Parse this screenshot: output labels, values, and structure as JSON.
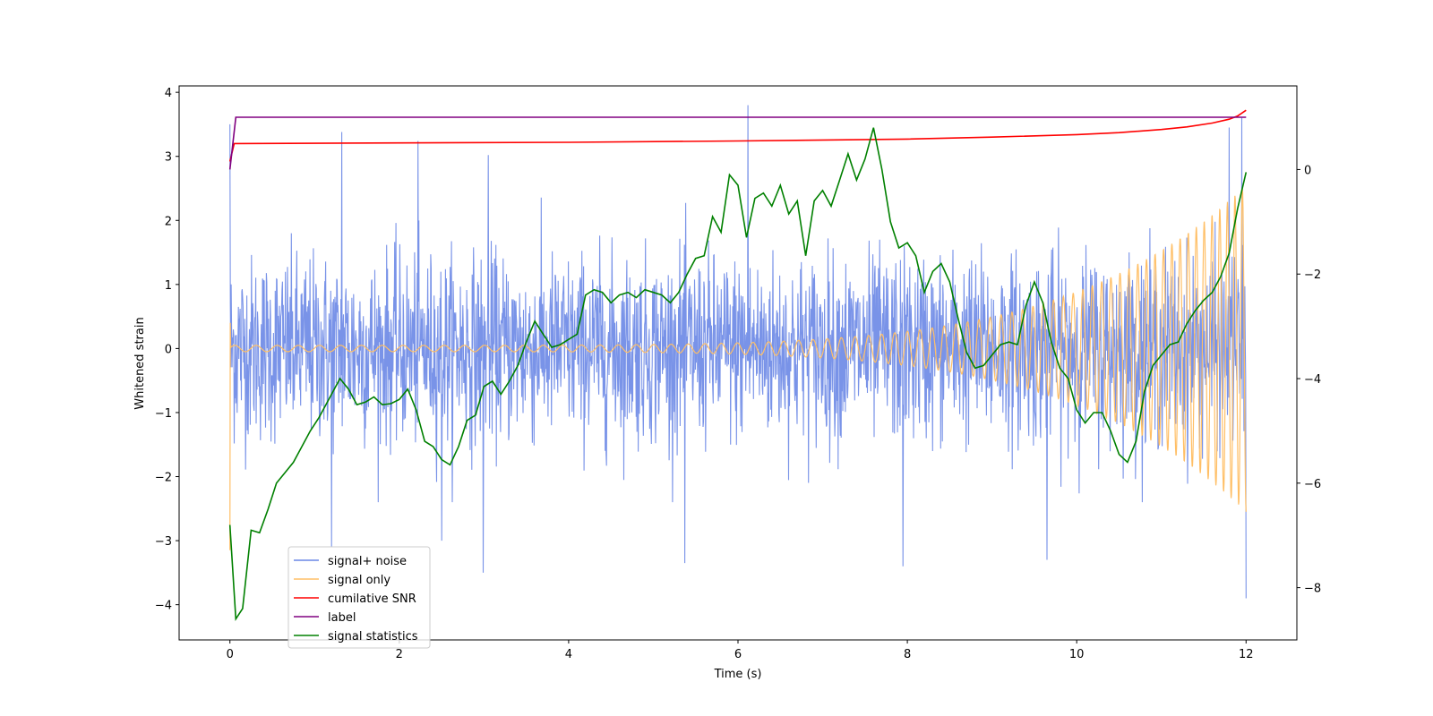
{
  "chart_data": {
    "type": "line",
    "title": "",
    "xlabel": "Time (s)",
    "ylabel": "Whitened strain",
    "xlim": [
      -0.6,
      12.6
    ],
    "ylim": [
      -4.55,
      4.1
    ],
    "ylim_right": [
      -9.0,
      1.6
    ],
    "xticks": [
      0,
      2,
      4,
      6,
      8,
      10,
      12
    ],
    "yticks": [
      -4,
      -3,
      -2,
      -1,
      0,
      1,
      2,
      3,
      4
    ],
    "yticks_right": [
      -8,
      -6,
      -4,
      -2,
      0
    ],
    "grid": false,
    "legend_position": "lower left",
    "series": [
      {
        "name": "signal+ noise",
        "color": "#6a87e6",
        "axis": "left",
        "kind": "noise band",
        "x_range": [
          0,
          12
        ],
        "typical_range": [
          -1.7,
          1.7
        ],
        "spikes": [
          {
            "x": 0.0,
            "y": 3.5
          },
          {
            "x": 1.32,
            "y": 3.38
          },
          {
            "x": 2.22,
            "y": 3.24
          },
          {
            "x": 3.05,
            "y": 3.02
          },
          {
            "x": 6.12,
            "y": 3.8
          },
          {
            "x": 11.8,
            "y": 3.45
          },
          {
            "x": 11.95,
            "y": 3.6
          },
          {
            "x": 1.2,
            "y": -3.1
          },
          {
            "x": 2.5,
            "y": -3.0
          },
          {
            "x": 2.99,
            "y": -3.5
          },
          {
            "x": 5.37,
            "y": -3.35
          },
          {
            "x": 7.95,
            "y": -3.4
          },
          {
            "x": 9.65,
            "y": -3.3
          },
          {
            "x": 12.0,
            "y": -3.9
          }
        ]
      },
      {
        "name": "signal only",
        "color": "#ffbf66",
        "axis": "left",
        "kind": "chirp",
        "start_amplitude": 0.05,
        "end_amplitude": 2.55,
        "start_y": -3.15
      },
      {
        "name": "cumilative SNR",
        "color": "#ff0000",
        "axis": "left",
        "x": [
          0,
          0.05,
          2,
          4,
          6,
          8,
          9,
          10,
          10.5,
          11,
          11.3,
          11.6,
          11.8,
          11.9,
          12.0
        ],
        "y": [
          2.92,
          3.2,
          3.21,
          3.22,
          3.24,
          3.27,
          3.3,
          3.34,
          3.37,
          3.42,
          3.46,
          3.52,
          3.58,
          3.63,
          3.72
        ]
      },
      {
        "name": "label",
        "color": "#800080",
        "axis": "right",
        "x": [
          0,
          0.07,
          11.96,
          12.0
        ],
        "y": [
          0,
          1,
          1,
          1
        ]
      },
      {
        "name": "signal statistics",
        "color": "#008000",
        "axis": "right",
        "x": [
          0,
          0.07,
          0.15,
          0.25,
          0.35,
          0.45,
          0.55,
          0.65,
          0.75,
          0.85,
          0.95,
          1.05,
          1.15,
          1.3,
          1.4,
          1.5,
          1.6,
          1.7,
          1.8,
          1.9,
          2.0,
          2.1,
          2.2,
          2.3,
          2.4,
          2.5,
          2.6,
          2.7,
          2.8,
          2.9,
          3.0,
          3.1,
          3.2,
          3.3,
          3.4,
          3.5,
          3.6,
          3.7,
          3.8,
          3.9,
          4.0,
          4.1,
          4.2,
          4.3,
          4.4,
          4.5,
          4.6,
          4.7,
          4.8,
          4.9,
          5.0,
          5.1,
          5.2,
          5.3,
          5.4,
          5.5,
          5.6,
          5.7,
          5.8,
          5.9,
          6.0,
          6.1,
          6.2,
          6.3,
          6.4,
          6.5,
          6.6,
          6.7,
          6.8,
          6.9,
          7.0,
          7.1,
          7.2,
          7.3,
          7.4,
          7.5,
          7.6,
          7.7,
          7.8,
          7.9,
          8.0,
          8.1,
          8.2,
          8.3,
          8.4,
          8.5,
          8.6,
          8.7,
          8.8,
          8.9,
          9.0,
          9.1,
          9.2,
          9.3,
          9.4,
          9.5,
          9.6,
          9.7,
          9.8,
          9.9,
          10.0,
          10.1,
          10.2,
          10.3,
          10.4,
          10.5,
          10.6,
          10.7,
          10.8,
          10.9,
          11.0,
          11.1,
          11.2,
          11.3,
          11.4,
          11.5,
          11.6,
          11.7,
          11.8,
          11.9,
          12.0
        ],
        "y": [
          -6.8,
          -8.6,
          -8.4,
          -6.9,
          -6.95,
          -6.5,
          -6.0,
          -5.8,
          -5.6,
          -5.3,
          -5.0,
          -4.75,
          -4.45,
          -4.0,
          -4.2,
          -4.5,
          -4.45,
          -4.35,
          -4.5,
          -4.48,
          -4.4,
          -4.2,
          -4.6,
          -5.2,
          -5.3,
          -5.55,
          -5.65,
          -5.3,
          -4.8,
          -4.7,
          -4.15,
          -4.05,
          -4.3,
          -4.05,
          -3.75,
          -3.3,
          -2.9,
          -3.15,
          -3.4,
          -3.35,
          -3.25,
          -3.15,
          -2.4,
          -2.3,
          -2.35,
          -2.55,
          -2.4,
          -2.35,
          -2.45,
          -2.3,
          -2.35,
          -2.4,
          -2.55,
          -2.35,
          -2.0,
          -1.7,
          -1.65,
          -0.9,
          -1.2,
          -0.1,
          -0.3,
          -1.3,
          -0.55,
          -0.45,
          -0.7,
          -0.3,
          -0.85,
          -0.6,
          -1.65,
          -0.6,
          -0.4,
          -0.7,
          -0.2,
          0.3,
          -0.2,
          0.2,
          0.8,
          0.0,
          -1.0,
          -1.5,
          -1.4,
          -1.65,
          -2.35,
          -1.95,
          -1.8,
          -2.15,
          -2.85,
          -3.5,
          -3.8,
          -3.75,
          -3.55,
          -3.35,
          -3.3,
          -3.35,
          -2.6,
          -2.15,
          -2.55,
          -3.3,
          -3.8,
          -4.0,
          -4.6,
          -4.85,
          -4.65,
          -4.65,
          -5.0,
          -5.45,
          -5.6,
          -5.2,
          -4.25,
          -3.75,
          -3.55,
          -3.35,
          -3.3,
          -2.95,
          -2.7,
          -2.5,
          -2.35,
          -2.05,
          -1.6,
          -0.75,
          -0.05
        ]
      }
    ]
  }
}
